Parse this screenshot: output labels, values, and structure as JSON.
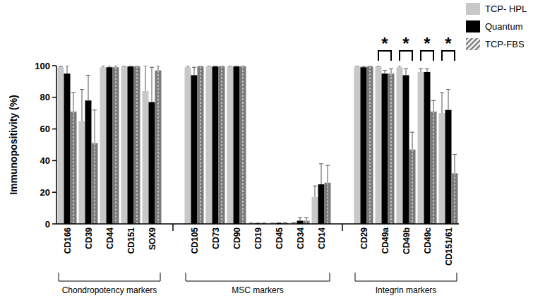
{
  "chart_data": {
    "type": "bar",
    "y_label": "Immunopositivity (%)",
    "categories": [
      "CD166",
      "CD39",
      "CD44",
      "CD151",
      "SOX9",
      "CD105",
      "CD73",
      "CD90",
      "CD19",
      "CD45",
      "CD34",
      "CD14",
      "CD29",
      "CD49a",
      "CD49b",
      "CD49c",
      "CD151/61"
    ],
    "groups": [
      {
        "label": "Chondropotency markers",
        "size": 5
      },
      {
        "label": "MSC markers",
        "size": 7
      },
      {
        "label": "Integrin markers",
        "size": 5
      }
    ],
    "series": [
      {
        "name": "TCP- HPL",
        "color": "#c8c8c8",
        "values": [
          99,
          65,
          99,
          99.5,
          84,
          99,
          99.5,
          99.5,
          0.3,
          0.3,
          0.5,
          17,
          99.5,
          99.5,
          99,
          96,
          70
        ],
        "errors": [
          0.5,
          20,
          1,
          0.5,
          16,
          1,
          0.5,
          0.5,
          0.2,
          0.2,
          0.3,
          7,
          0.5,
          0.5,
          1,
          2,
          13
        ]
      },
      {
        "name": "Quantum",
        "color": "#000000",
        "values": [
          95,
          78,
          99,
          99.5,
          77,
          94,
          99.5,
          99.5,
          0.3,
          0.5,
          2,
          25,
          99,
          95,
          94,
          96,
          72
        ],
        "errors": [
          5,
          16,
          1,
          0.5,
          22,
          5,
          0.5,
          0.5,
          0.2,
          0.3,
          2,
          13,
          0.5,
          2,
          4,
          2,
          13
        ]
      },
      {
        "name": "TCP-FBS",
        "color": "#7a7a7a",
        "values": [
          71,
          51,
          99,
          99.5,
          97,
          99.5,
          99.5,
          99.5,
          0.3,
          0.5,
          2,
          26,
          99.5,
          95,
          47,
          71,
          32
        ],
        "errors": [
          12,
          21,
          1,
          0.5,
          3,
          0.5,
          0.5,
          0.5,
          0.2,
          0.3,
          2,
          11,
          0.5,
          3,
          11,
          7,
          12
        ]
      }
    ],
    "ylim": [
      0,
      100
    ],
    "yticks": [
      0,
      20,
      40,
      60,
      80,
      100
    ],
    "grid": false,
    "legend": "top-right",
    "annotations": [
      {
        "category": "CD49a",
        "text": "*"
      },
      {
        "category": "CD49b",
        "text": "*"
      },
      {
        "category": "CD49c",
        "text": "*"
      },
      {
        "category": "CD151/61",
        "text": "*"
      }
    ]
  }
}
